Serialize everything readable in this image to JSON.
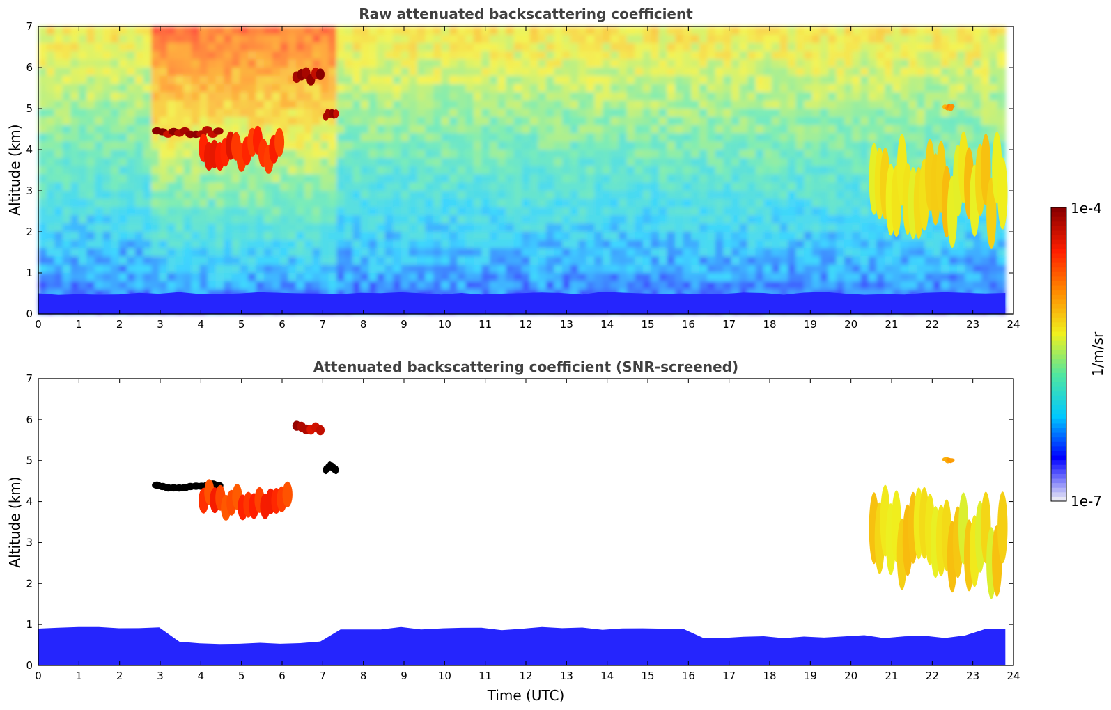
{
  "chart_data": [
    {
      "type": "heatmap",
      "title": "Raw attenuated backscattering coefficient",
      "xlabel": "",
      "ylabel": "Altitude (km)",
      "xlim": [
        0,
        24
      ],
      "ylim": [
        0,
        7
      ],
      "xticks": [
        "0",
        "1",
        "2",
        "3",
        "4",
        "5",
        "6",
        "7",
        "8",
        "9",
        "10",
        "11",
        "12",
        "13",
        "14",
        "15",
        "16",
        "17",
        "18",
        "19",
        "20",
        "21",
        "22",
        "23",
        "24"
      ],
      "yticks": [
        "0",
        "1",
        "2",
        "3",
        "4",
        "5",
        "6",
        "7"
      ],
      "x_data_end": 23.8,
      "features": [
        {
          "kind": "boundary_layer",
          "x": [
            0,
            23.8
          ],
          "top_km": 0.5,
          "level": 0.12
        },
        {
          "kind": "cloud",
          "x": [
            2.85,
            4.5
          ],
          "alt_km": [
            4.3,
            4.55
          ],
          "level": 0.97
        },
        {
          "kind": "cloud",
          "x": [
            4.0,
            6.0
          ],
          "alt_km": [
            3.5,
            4.5
          ],
          "level": 0.85
        },
        {
          "kind": "cloud",
          "x": [
            6.3,
            7.0
          ],
          "alt_km": [
            5.6,
            6.0
          ],
          "level": 0.97
        },
        {
          "kind": "cloud",
          "x": [
            7.05,
            7.35
          ],
          "alt_km": [
            4.7,
            5.0
          ],
          "level": 0.95
        },
        {
          "kind": "cloud",
          "x": [
            20.5,
            23.8
          ],
          "alt_km": [
            1.8,
            4.3
          ],
          "level": 0.6
        },
        {
          "kind": "cloud",
          "x": [
            22.3,
            22.5
          ],
          "alt_km": [
            4.95,
            5.1
          ],
          "level": 0.7
        }
      ]
    },
    {
      "type": "heatmap",
      "title": "Attenuated backscattering coefficient (SNR-screened)",
      "xlabel": "Time (UTC)",
      "ylabel": "Altitude (km)",
      "xlim": [
        0,
        24
      ],
      "ylim": [
        0,
        7
      ],
      "xticks": [
        "0",
        "1",
        "2",
        "3",
        "4",
        "5",
        "6",
        "7",
        "8",
        "9",
        "10",
        "11",
        "12",
        "13",
        "14",
        "15",
        "16",
        "17",
        "18",
        "19",
        "20",
        "21",
        "22",
        "23",
        "24"
      ],
      "yticks": [
        "0",
        "1",
        "2",
        "3",
        "4",
        "5",
        "6",
        "7"
      ],
      "x_data_end": 23.8,
      "features": [
        {
          "kind": "boundary_layer",
          "x": [
            0,
            23.8
          ],
          "top_km": 0.9,
          "level": 0.12
        },
        {
          "kind": "cloud",
          "x": [
            2.85,
            4.5
          ],
          "alt_km": [
            4.25,
            4.5
          ],
          "level": 1.0
        },
        {
          "kind": "cloud",
          "x": [
            4.0,
            6.2
          ],
          "alt_km": [
            3.6,
            4.5
          ],
          "level": 0.82
        },
        {
          "kind": "cloud",
          "x": [
            6.3,
            7.0
          ],
          "alt_km": [
            5.6,
            5.95
          ],
          "level": 0.95
        },
        {
          "kind": "cloud",
          "x": [
            7.05,
            7.35
          ],
          "alt_km": [
            4.7,
            5.0
          ],
          "level": 1.0
        },
        {
          "kind": "cloud",
          "x": [
            20.5,
            23.8
          ],
          "alt_km": [
            1.8,
            4.3
          ],
          "level": 0.6
        },
        {
          "kind": "cloud",
          "x": [
            22.3,
            22.5
          ],
          "alt_km": [
            4.95,
            5.1
          ],
          "level": 0.7
        }
      ]
    }
  ],
  "colorbar": {
    "label": "1/m/sr",
    "max_label": "1e-4",
    "min_label": "1e-7",
    "scale": "log",
    "range": [
      1e-07,
      0.0001
    ],
    "colormap": [
      "#e6e6f5",
      "#0000ff",
      "#00c8ff",
      "#50e6a0",
      "#f0f01e",
      "#ff8c00",
      "#ff1e00",
      "#8b0000"
    ]
  }
}
